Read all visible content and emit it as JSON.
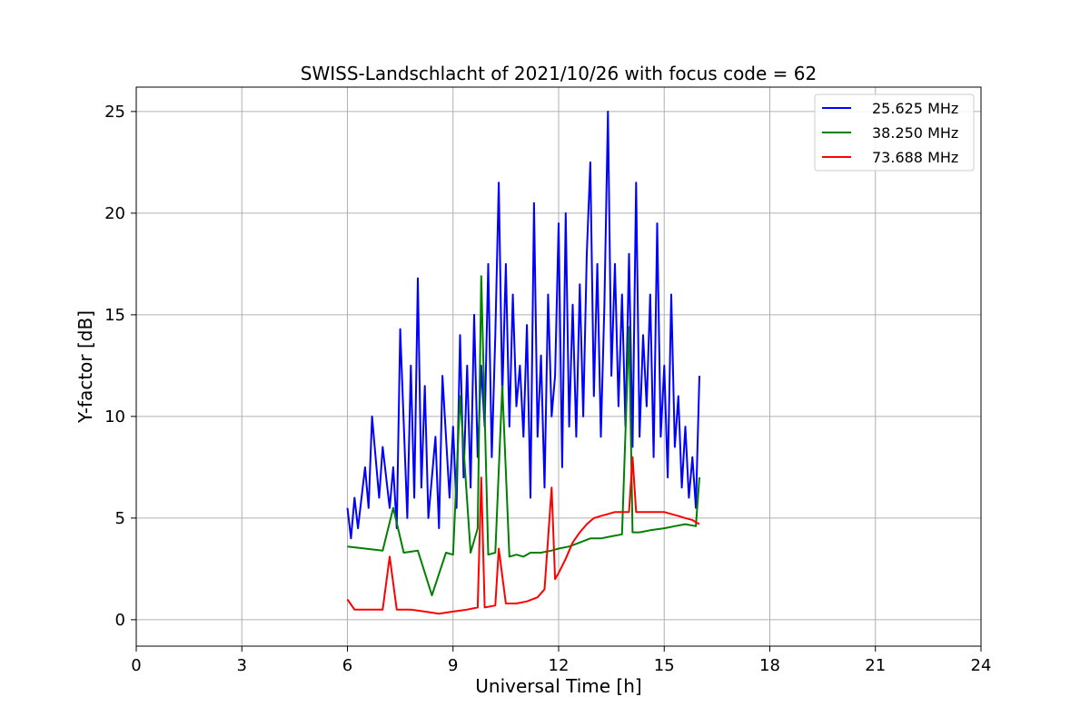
{
  "chart_data": {
    "type": "line",
    "title": "SWISS-Landschlacht of 2021/10/26 with focus code = 62",
    "xlabel": "Universal Time [h]",
    "ylabel": "Y-factor [dB]",
    "xlim": [
      0,
      24
    ],
    "ylim": [
      -1.3,
      26.2
    ],
    "xticks": [
      0,
      3,
      6,
      9,
      12,
      15,
      18,
      21,
      24
    ],
    "yticks": [
      0,
      5,
      10,
      15,
      20,
      25
    ],
    "grid": true,
    "legend_position": "top-right",
    "series": [
      {
        "name": "25.625 MHz",
        "color": "#0000ff",
        "x": [
          6.0,
          6.1,
          6.2,
          6.3,
          6.5,
          6.6,
          6.7,
          6.9,
          7.0,
          7.2,
          7.3,
          7.4,
          7.5,
          7.7,
          7.8,
          7.9,
          8.0,
          8.1,
          8.2,
          8.3,
          8.5,
          8.6,
          8.7,
          8.9,
          9.0,
          9.1,
          9.2,
          9.3,
          9.4,
          9.5,
          9.6,
          9.7,
          9.8,
          9.9,
          10.0,
          10.1,
          10.2,
          10.3,
          10.4,
          10.5,
          10.6,
          10.7,
          10.8,
          10.9,
          11.0,
          11.1,
          11.2,
          11.3,
          11.4,
          11.5,
          11.6,
          11.7,
          11.8,
          11.9,
          12.0,
          12.1,
          12.2,
          12.3,
          12.4,
          12.5,
          12.6,
          12.7,
          12.8,
          12.9,
          13.0,
          13.1,
          13.2,
          13.3,
          13.4,
          13.5,
          13.6,
          13.7,
          13.8,
          13.9,
          14.0,
          14.1,
          14.2,
          14.3,
          14.4,
          14.5,
          14.6,
          14.7,
          14.8,
          14.9,
          15.0,
          15.1,
          15.2,
          15.3,
          15.4,
          15.5,
          15.6,
          15.7,
          15.8,
          15.9,
          16.0
        ],
        "values": [
          5.5,
          4.0,
          6.0,
          4.5,
          7.5,
          5.5,
          10.0,
          6.0,
          8.5,
          5.5,
          7.5,
          4.5,
          14.3,
          5.0,
          12.5,
          6.0,
          16.8,
          6.5,
          11.5,
          5.0,
          9.0,
          4.5,
          12.0,
          6.0,
          9.5,
          5.5,
          14.0,
          7.0,
          12.5,
          6.5,
          15.0,
          8.0,
          12.5,
          9.5,
          17.5,
          8.0,
          14.0,
          21.5,
          11.0,
          17.5,
          9.5,
          16.0,
          10.5,
          12.5,
          9.0,
          14.5,
          6.0,
          20.5,
          9.0,
          13.0,
          6.5,
          16.0,
          10.0,
          12.0,
          19.5,
          7.5,
          20.0,
          9.5,
          15.5,
          9.0,
          16.5,
          10.0,
          18.0,
          22.5,
          11.0,
          17.5,
          9.0,
          15.5,
          25.0,
          12.0,
          17.5,
          10.5,
          16.0,
          9.5,
          18.0,
          8.5,
          21.5,
          9.0,
          14.0,
          10.5,
          16.0,
          8.0,
          19.5,
          9.0,
          12.5,
          7.0,
          16.0,
          8.5,
          11.0,
          6.5,
          9.5,
          6.0,
          8.0,
          5.5,
          12.0
        ]
      },
      {
        "name": "38.250 MHz",
        "color": "#008000",
        "x": [
          6.0,
          6.5,
          7.0,
          7.3,
          7.6,
          8.0,
          8.4,
          8.8,
          9.0,
          9.2,
          9.5,
          9.7,
          9.8,
          10.0,
          10.2,
          10.4,
          10.6,
          10.8,
          11.0,
          11.2,
          11.5,
          11.8,
          12.0,
          12.3,
          12.6,
          12.9,
          13.2,
          13.5,
          13.8,
          14.0,
          14.1,
          14.3,
          14.6,
          15.0,
          15.3,
          15.6,
          15.9,
          16.0
        ],
        "values": [
          3.6,
          3.5,
          3.4,
          5.5,
          3.3,
          3.4,
          1.2,
          3.3,
          3.2,
          11.0,
          3.3,
          4.5,
          16.9,
          3.2,
          3.3,
          11.5,
          3.1,
          3.2,
          3.1,
          3.3,
          3.3,
          3.4,
          3.5,
          3.6,
          3.8,
          4.0,
          4.0,
          4.1,
          4.2,
          14.4,
          4.3,
          4.3,
          4.4,
          4.5,
          4.6,
          4.7,
          4.6,
          7.0
        ]
      },
      {
        "name": "73.688 MHz",
        "color": "#ff0000",
        "x": [
          6.0,
          6.2,
          6.5,
          7.0,
          7.2,
          7.4,
          7.8,
          8.2,
          8.6,
          9.0,
          9.4,
          9.7,
          9.8,
          9.9,
          10.2,
          10.3,
          10.5,
          10.8,
          11.1,
          11.4,
          11.6,
          11.8,
          11.9,
          12.0,
          12.2,
          12.4,
          12.6,
          12.8,
          13.0,
          13.2,
          13.4,
          13.6,
          13.8,
          14.0,
          14.1,
          14.2,
          14.4,
          14.6,
          14.8,
          15.0,
          15.2,
          15.4,
          15.6,
          15.8,
          16.0
        ],
        "values": [
          1.0,
          0.5,
          0.5,
          0.5,
          3.1,
          0.5,
          0.5,
          0.4,
          0.3,
          0.4,
          0.5,
          0.6,
          7.0,
          0.6,
          0.7,
          3.5,
          0.8,
          0.8,
          0.9,
          1.1,
          1.5,
          6.5,
          2.0,
          2.3,
          3.0,
          3.8,
          4.3,
          4.7,
          5.0,
          5.1,
          5.2,
          5.3,
          5.3,
          5.3,
          8.0,
          5.3,
          5.3,
          5.3,
          5.3,
          5.3,
          5.2,
          5.1,
          5.0,
          4.9,
          4.7
        ]
      }
    ]
  }
}
